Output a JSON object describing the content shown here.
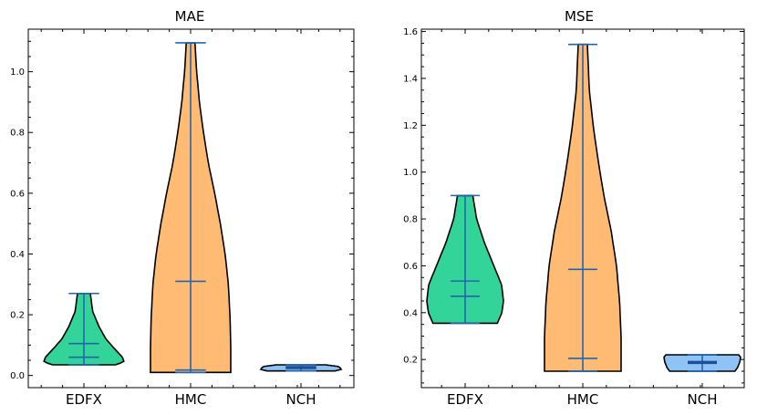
{
  "chart_data": [
    {
      "type": "violin",
      "title": "MAE",
      "xlabel": "",
      "ylabel": "",
      "categories": [
        "EDFX",
        "HMC",
        "NCH"
      ],
      "ylim": [
        -0.04,
        1.14
      ],
      "yticks": [
        "0.0",
        "0.2",
        "0.4",
        "0.6",
        "0.8",
        "1.0"
      ],
      "grid": false,
      "colors": [
        "#33d49a",
        "#ffbb73",
        "#8fc3f5"
      ],
      "series": [
        {
          "category": "EDFX",
          "min": 0.035,
          "max": 0.27,
          "mean": 0.105,
          "median": 0.06,
          "shape": [
            [
              0.035,
              0.78
            ],
            [
              0.045,
              1.0
            ],
            [
              0.06,
              0.96
            ],
            [
              0.09,
              0.75
            ],
            [
              0.12,
              0.55
            ],
            [
              0.16,
              0.38
            ],
            [
              0.21,
              0.22
            ],
            [
              0.27,
              0.16
            ]
          ]
        },
        {
          "category": "HMC",
          "min": 0.01,
          "max": 1.095,
          "mean": 0.31,
          "median": 0.018,
          "shape": [
            [
              0.01,
              1.0
            ],
            [
              0.1,
              1.0
            ],
            [
              0.2,
              0.98
            ],
            [
              0.3,
              0.94
            ],
            [
              0.4,
              0.86
            ],
            [
              0.5,
              0.74
            ],
            [
              0.6,
              0.6
            ],
            [
              0.7,
              0.44
            ],
            [
              0.8,
              0.32
            ],
            [
              0.9,
              0.22
            ],
            [
              1.0,
              0.15
            ],
            [
              1.095,
              0.11
            ]
          ]
        },
        {
          "category": "NCH",
          "min": 0.015,
          "max": 0.035,
          "mean": 0.028,
          "median": 0.024,
          "shape": [
            [
              0.015,
              0.85
            ],
            [
              0.02,
              1.0
            ],
            [
              0.025,
              0.98
            ],
            [
              0.03,
              0.92
            ],
            [
              0.035,
              0.62
            ]
          ]
        }
      ]
    },
    {
      "type": "violin",
      "title": "MSE",
      "xlabel": "",
      "ylabel": "",
      "categories": [
        "EDFX",
        "HMC",
        "NCH"
      ],
      "ylim": [
        0.08,
        1.61
      ],
      "yticks": [
        "0.2",
        "0.4",
        "0.6",
        "0.8",
        "1.0",
        "1.2",
        "1.4",
        "1.6"
      ],
      "grid": false,
      "colors": [
        "#33d49a",
        "#ffbb73",
        "#8fc3f5"
      ],
      "series": [
        {
          "category": "EDFX",
          "min": 0.355,
          "max": 0.9,
          "mean": 0.535,
          "median": 0.47,
          "shape": [
            [
              0.355,
              0.84
            ],
            [
              0.4,
              0.96
            ],
            [
              0.45,
              1.0
            ],
            [
              0.52,
              0.95
            ],
            [
              0.6,
              0.75
            ],
            [
              0.7,
              0.5
            ],
            [
              0.8,
              0.3
            ],
            [
              0.9,
              0.2
            ]
          ]
        },
        {
          "category": "HMC",
          "min": 0.15,
          "max": 1.545,
          "mean": 0.585,
          "median": 0.205,
          "shape": [
            [
              0.15,
              1.0
            ],
            [
              0.3,
              1.0
            ],
            [
              0.45,
              0.96
            ],
            [
              0.6,
              0.88
            ],
            [
              0.75,
              0.74
            ],
            [
              0.9,
              0.55
            ],
            [
              1.05,
              0.4
            ],
            [
              1.2,
              0.27
            ],
            [
              1.35,
              0.17
            ],
            [
              1.545,
              0.12
            ]
          ]
        },
        {
          "category": "NCH",
          "min": 0.15,
          "max": 0.22,
          "mean": 0.19,
          "median": 0.185,
          "shape": [
            [
              0.15,
              0.85
            ],
            [
              0.165,
              0.92
            ],
            [
              0.19,
              0.98
            ],
            [
              0.21,
              1.0
            ],
            [
              0.22,
              0.95
            ]
          ]
        }
      ]
    }
  ]
}
